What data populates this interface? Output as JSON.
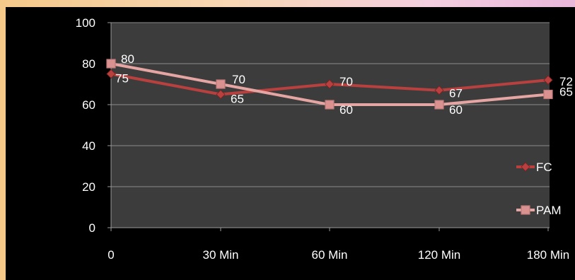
{
  "chart_data": {
    "type": "line",
    "categories": [
      "0",
      "30 Min",
      "60 Min",
      "120 Min",
      "180 Min"
    ],
    "series": [
      {
        "name": "FC",
        "values": [
          75,
          65,
          70,
          67,
          72
        ],
        "color": "#b8403f",
        "marker": "diamond"
      },
      {
        "name": "PAM",
        "values": [
          80,
          70,
          60,
          60,
          65
        ],
        "color": "#e4a5a3",
        "marker": "square"
      }
    ],
    "ylim": [
      0,
      100
    ],
    "yticks": [
      "0",
      "20",
      "40",
      "60",
      "80",
      "100"
    ],
    "grid": true,
    "legend_position": "right",
    "plot_background": "#3c3c3c",
    "page_background": "#000000"
  }
}
